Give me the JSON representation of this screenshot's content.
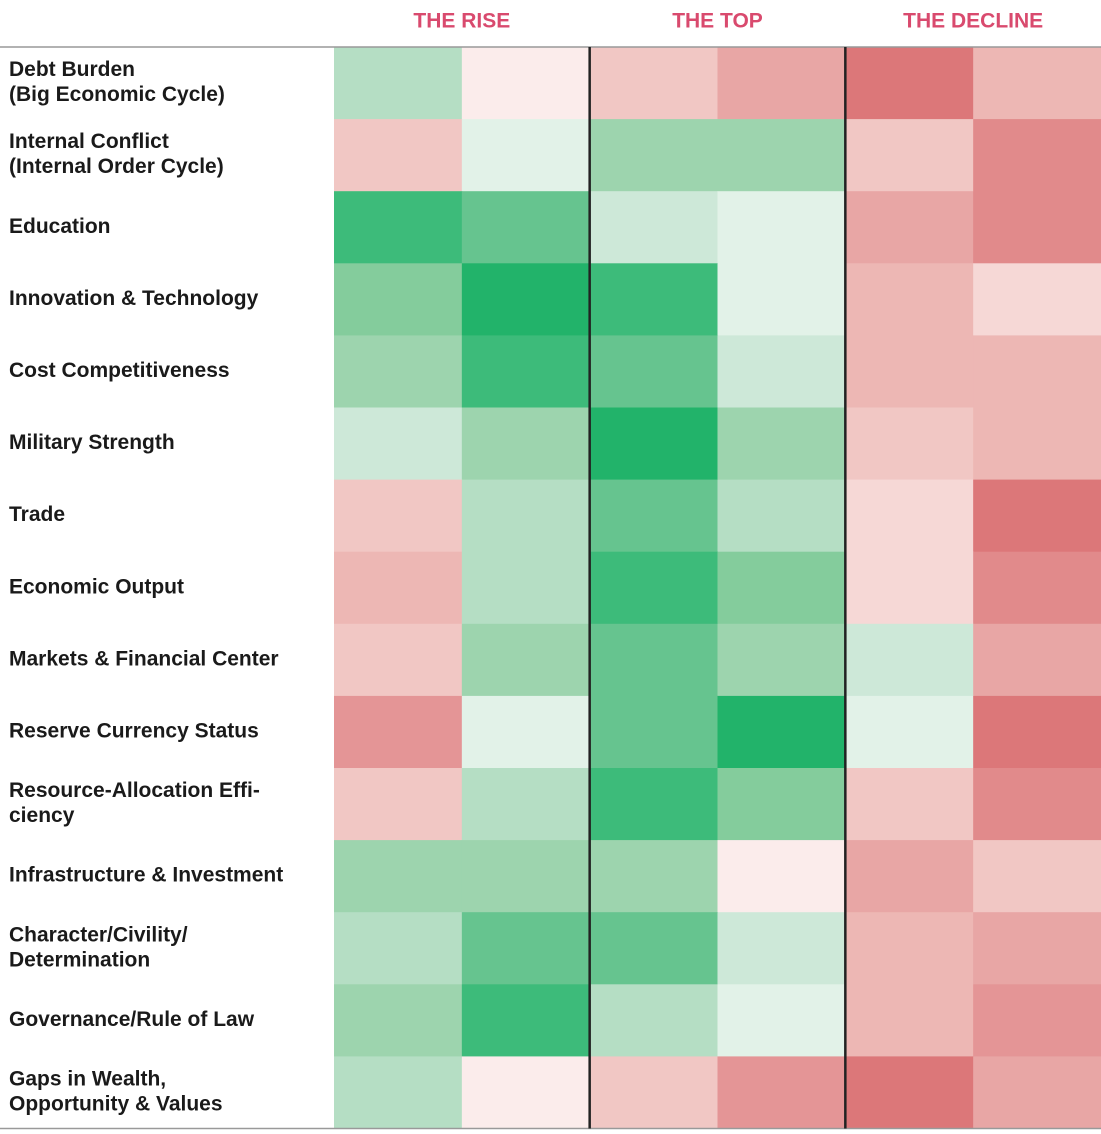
{
  "chart_data": {
    "type": "heatmap",
    "phases": [
      "THE RISE",
      "THE TOP",
      "THE DECLINE"
    ],
    "header_color": "#d94a6e",
    "rows": [
      {
        "label": [
          "Debt Burden",
          "(Big Economic Cycle)"
        ],
        "colors": [
          "#b5dec4",
          "#fbeceb",
          "#f1c7c4",
          "#e8a6a5",
          "#dc7779",
          "#edb7b4"
        ]
      },
      {
        "label": [
          "Internal Conflict",
          "(Internal Order Cycle)"
        ],
        "colors": [
          "#f1c7c4",
          "#e2f2e8",
          "#9dd4ae",
          "#9dd4ae",
          "#f1c7c4",
          "#e18a8b"
        ]
      },
      {
        "label": [
          "Education"
        ],
        "colors": [
          "#3dbb7a",
          "#66c48f",
          "#cde8d8",
          "#e2f2e8",
          "#e8a6a5",
          "#e18a8b"
        ]
      },
      {
        "label": [
          "Innovation & Technology"
        ],
        "colors": [
          "#84cc9c",
          "#22b36a",
          "#3dbb7a",
          "#e2f2e8",
          "#edb7b4",
          "#f6d8d6"
        ]
      },
      {
        "label": [
          "Cost Competitiveness"
        ],
        "colors": [
          "#9dd4ae",
          "#3dbb7a",
          "#66c48f",
          "#cde8d8",
          "#edb7b4",
          "#edb7b4"
        ]
      },
      {
        "label": [
          "Military Strength"
        ],
        "colors": [
          "#cde8d8",
          "#9dd4ae",
          "#22b36a",
          "#9dd4ae",
          "#f1c7c4",
          "#edb7b4"
        ]
      },
      {
        "label": [
          "Trade"
        ],
        "colors": [
          "#f1c7c4",
          "#b5dec4",
          "#66c48f",
          "#b5dec4",
          "#f6d8d6",
          "#dc7779"
        ]
      },
      {
        "label": [
          "Economic Output"
        ],
        "colors": [
          "#edb7b4",
          "#b5dec4",
          "#3dbb7a",
          "#84cc9c",
          "#f6d8d6",
          "#e18a8b"
        ]
      },
      {
        "label": [
          "Markets & Financial Center"
        ],
        "colors": [
          "#f1c7c4",
          "#9dd4ae",
          "#66c48f",
          "#9dd4ae",
          "#cde8d8",
          "#e8a6a5"
        ]
      },
      {
        "label": [
          "Reserve Currency Status"
        ],
        "colors": [
          "#e49596",
          "#e2f2e8",
          "#66c48f",
          "#22b36a",
          "#e2f2e8",
          "#dc7779"
        ]
      },
      {
        "label": [
          "Resource-Allocation Effi-",
          "ciency"
        ],
        "colors": [
          "#f1c7c4",
          "#b5dec4",
          "#3dbb7a",
          "#84cc9c",
          "#f1c7c4",
          "#e18a8b"
        ]
      },
      {
        "label": [
          "Infrastructure & Investment"
        ],
        "colors": [
          "#9dd4ae",
          "#9dd4ae",
          "#9dd4ae",
          "#fbeceb",
          "#e8a6a5",
          "#f1c7c4"
        ]
      },
      {
        "label": [
          "Character/Civility/",
          "Determination"
        ],
        "colors": [
          "#b5dec4",
          "#66c48f",
          "#66c48f",
          "#cde8d8",
          "#edb7b4",
          "#e8a6a5"
        ]
      },
      {
        "label": [
          "Governance/Rule of Law"
        ],
        "colors": [
          "#9dd4ae",
          "#3dbb7a",
          "#b5dec4",
          "#e2f2e8",
          "#edb7b4",
          "#e49596"
        ]
      },
      {
        "label": [
          "Gaps in Wealth,",
          "Opportunity & Values"
        ],
        "colors": [
          "#b5dec4",
          "#fbeceb",
          "#f1c7c4",
          "#e49596",
          "#dc7779",
          "#e8a6a5"
        ]
      }
    ]
  }
}
